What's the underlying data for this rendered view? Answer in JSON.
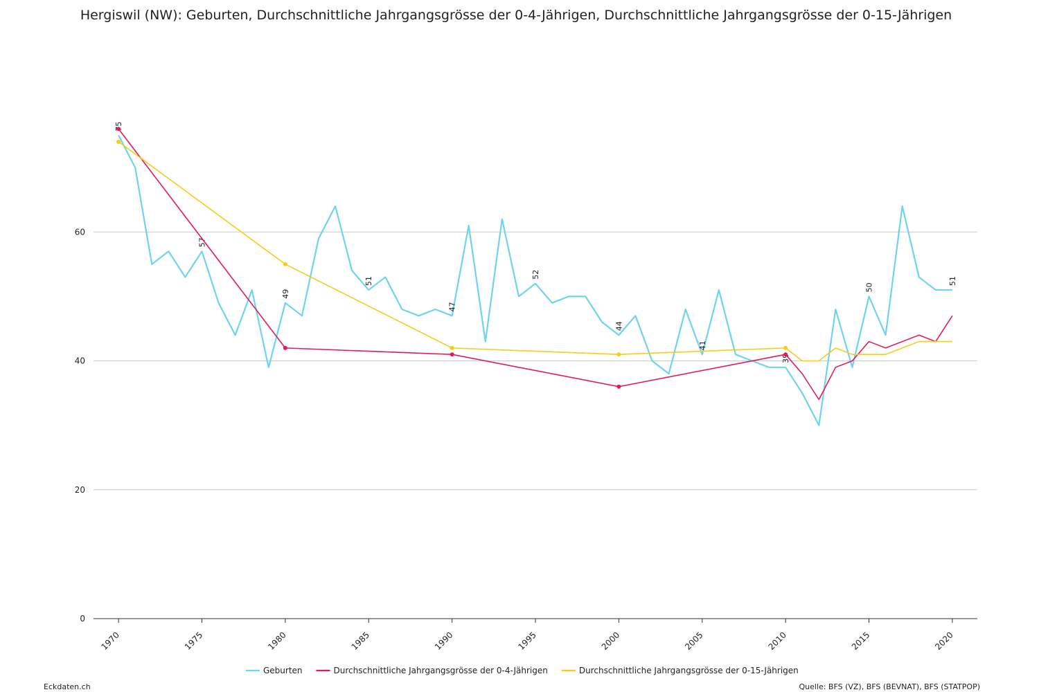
{
  "chart_data": {
    "type": "line",
    "title": "Hergiswil (NW): Geburten, Durchschnittliche Jahrgangsgrösse der 0-4-Jährigen, Durchschnittliche Jahrgangsgrösse der 0-15-Jährigen",
    "source": "Quelle: BFS (VZ), BFS (BEVNAT), BFS (STATPOP)",
    "brand": "Eckdaten.ch",
    "xlim": [
      1968.5,
      2021.5
    ],
    "xticks": [
      1970,
      1975,
      1980,
      1985,
      1990,
      1995,
      2000,
      2005,
      2010,
      2015,
      2020
    ],
    "ylim": [
      0,
      80
    ],
    "yticks": [
      0,
      20,
      40,
      60
    ],
    "grid": true,
    "legend": "bottom",
    "series": [
      {
        "name": "Geburten",
        "color": "#6fd3f0",
        "x": [
          1970,
          1971,
          1972,
          1973,
          1974,
          1975,
          1976,
          1977,
          1978,
          1979,
          1980,
          1981,
          1982,
          1983,
          1984,
          1985,
          1986,
          1987,
          1988,
          1989,
          1990,
          1991,
          1992,
          1993,
          1994,
          1995,
          1996,
          1997,
          1998,
          1999,
          2000,
          2001,
          2002,
          2003,
          2004,
          2005,
          2006,
          2007,
          2008,
          2009,
          2010,
          2011,
          2012,
          2013,
          2014,
          2015,
          2016,
          2017,
          2018,
          2019,
          2020
        ],
        "values": [
          75,
          70,
          55,
          57,
          53,
          57,
          49,
          44,
          51,
          39,
          49,
          47,
          59,
          64,
          54,
          51,
          53,
          48,
          47,
          48,
          47,
          61,
          43,
          62,
          50,
          52,
          49,
          50,
          50,
          46,
          44,
          47,
          40,
          38,
          48,
          41,
          51,
          41,
          40,
          39,
          39,
          35,
          30,
          48,
          39,
          50,
          44,
          64,
          53,
          51,
          51
        ]
      },
      {
        "name": "Durchschnittliche Jahrgangsgrösse der 0-4-Jährigen",
        "color": "#e5185a",
        "x": [
          1970,
          1980,
          1990,
          2000,
          2010,
          2011,
          2012,
          2013,
          2014,
          2015,
          2016,
          2017,
          2018,
          2019,
          2020
        ],
        "values": [
          76,
          42,
          41,
          36,
          41,
          38,
          34,
          39,
          40,
          43,
          42,
          43,
          44,
          43,
          47
        ]
      },
      {
        "name": "Durchschnittliche Jahrgangsgrösse der 0-15-Jährigen",
        "color": "#f6cc15",
        "x": [
          1970,
          1980,
          1990,
          2000,
          2010,
          2011,
          2012,
          2013,
          2014,
          2015,
          2016,
          2017,
          2018,
          2019,
          2020
        ],
        "values": [
          74,
          55,
          42,
          41,
          42,
          40,
          40,
          42,
          41,
          41,
          41,
          42,
          43,
          43,
          43
        ]
      }
    ]
  }
}
